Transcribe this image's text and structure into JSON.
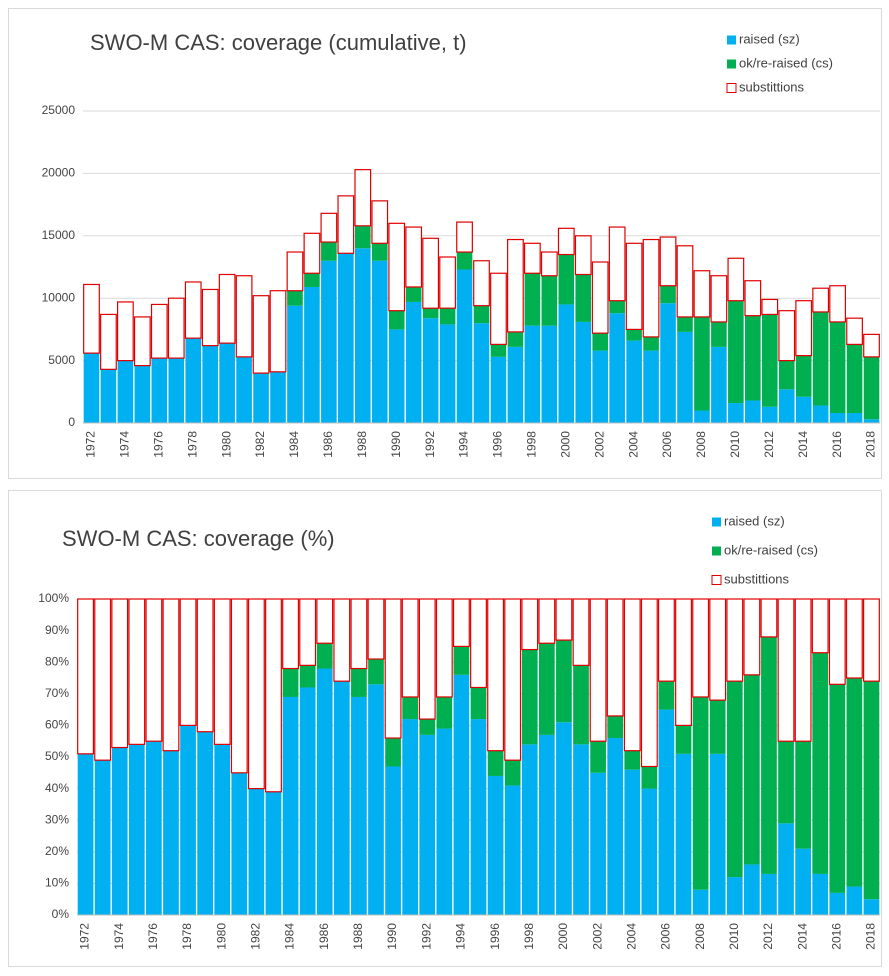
{
  "chart_data": [
    {
      "type": "bar",
      "stacked": true,
      "title": "SWO-M CAS: coverage (cumulative, t)",
      "categories": [
        "1972",
        null,
        "1974",
        null,
        "1976",
        null,
        "1978",
        null,
        "1980",
        null,
        "1982",
        null,
        "1984",
        null,
        "1986",
        null,
        "1988",
        null,
        "1990",
        null,
        "1992",
        null,
        "1994",
        null,
        "1996",
        null,
        "1998",
        null,
        "2000",
        null,
        "2002",
        null,
        "2004",
        null,
        "2006",
        null,
        "2008",
        null,
        "2010",
        null,
        "2012",
        null,
        "2014",
        null,
        "2016",
        null,
        "2018"
      ],
      "series": [
        {
          "name": "raised (sz)",
          "color": "#00b0f0",
          "values": [
            5600,
            4300,
            5000,
            4600,
            5200,
            5200,
            6800,
            6200,
            6400,
            5300,
            4000,
            4100,
            9400,
            10900,
            13000,
            13600,
            14000,
            13000,
            7500,
            9700,
            8400,
            7900,
            12300,
            8000,
            5300,
            6100,
            7800,
            7800,
            9500,
            8100,
            5800,
            8800,
            6600,
            5800,
            9600,
            7300,
            1000,
            6100,
            1600,
            1800,
            1300,
            2700,
            2100,
            1400,
            800,
            800,
            300
          ]
        },
        {
          "name": "ok/re-raised (cs)",
          "color": "#00b050",
          "values": [
            0,
            0,
            0,
            0,
            0,
            0,
            0,
            0,
            0,
            0,
            0,
            0,
            1200,
            1100,
            1500,
            0,
            1800,
            1400,
            1500,
            1200,
            800,
            1300,
            1400,
            1400,
            1000,
            1200,
            4200,
            4000,
            4000,
            3800,
            1400,
            1000,
            900,
            1100,
            1400,
            1200,
            7500,
            2000,
            8200,
            6800,
            7400,
            2300,
            3300,
            7500,
            7300,
            5500,
            5000
          ]
        },
        {
          "name": "substittions",
          "color": "#ffffff",
          "edgecolor": "#e00000",
          "values": [
            5500,
            4400,
            4700,
            3900,
            4300,
            4800,
            4500,
            4500,
            5500,
            6500,
            6200,
            6500,
            3100,
            3200,
            2300,
            4600,
            4500,
            3400,
            7000,
            4800,
            5600,
            4100,
            2400,
            3600,
            5700,
            7400,
            2400,
            1900,
            2100,
            3100,
            5700,
            5900,
            6900,
            7800,
            3900,
            5700,
            3700,
            3700,
            3400,
            2800,
            1200,
            4000,
            4400,
            1900,
            2900,
            2100,
            1800
          ]
        }
      ],
      "ylim": [
        0,
        25000
      ],
      "yticks": [
        0,
        5000,
        10000,
        15000,
        20000,
        25000
      ],
      "grid": true
    },
    {
      "type": "bar",
      "stacked": true,
      "title": "SWO-M CAS: coverage (%)",
      "categories": [
        "1972",
        null,
        "1974",
        null,
        "1976",
        null,
        "1978",
        null,
        "1980",
        null,
        "1982",
        null,
        "1984",
        null,
        "1986",
        null,
        "1988",
        null,
        "1990",
        null,
        "1992",
        null,
        "1994",
        null,
        "1996",
        null,
        "1998",
        null,
        "2000",
        null,
        "2002",
        null,
        "2004",
        null,
        "2006",
        null,
        "2008",
        null,
        "2010",
        null,
        "2012",
        null,
        "2014",
        null,
        "2016",
        null,
        "2018"
      ],
      "series": [
        {
          "name": "raised (sz)",
          "color": "#00b0f0",
          "values": [
            51,
            49,
            53,
            54,
            55,
            52,
            60,
            58,
            54,
            45,
            40,
            39,
            69,
            72,
            78,
            74,
            69,
            73,
            47,
            62,
            57,
            59,
            76,
            62,
            44,
            41,
            54,
            57,
            61,
            54,
            45,
            56,
            46,
            40,
            65,
            51,
            8,
            51,
            12,
            16,
            13,
            29,
            21,
            13,
            7,
            9,
            5
          ]
        },
        {
          "name": "ok/re-raised (cs)",
          "color": "#00b050",
          "values": [
            0,
            0,
            0,
            0,
            0,
            0,
            0,
            0,
            0,
            0,
            0,
            0,
            9,
            7,
            8,
            0,
            9,
            8,
            9,
            7,
            5,
            10,
            9,
            10,
            8,
            8,
            30,
            29,
            26,
            25,
            10,
            7,
            6,
            7,
            9,
            9,
            61,
            17,
            62,
            60,
            75,
            26,
            34,
            70,
            66,
            66,
            69
          ]
        },
        {
          "name": "substittions",
          "color": "#ffffff",
          "edgecolor": "#e00000",
          "values": [
            49,
            51,
            47,
            46,
            45,
            48,
            40,
            42,
            46,
            55,
            60,
            61,
            22,
            21,
            14,
            26,
            22,
            19,
            44,
            31,
            38,
            31,
            15,
            28,
            48,
            51,
            16,
            14,
            13,
            21,
            45,
            37,
            48,
            53,
            26,
            40,
            31,
            32,
            26,
            24,
            12,
            45,
            45,
            17,
            27,
            25,
            26
          ]
        }
      ],
      "ylim": [
        0,
        100
      ],
      "yticks": [
        {
          "value": 0,
          "label": "0%"
        },
        {
          "value": 10,
          "label": "10%"
        },
        {
          "value": 20,
          "label": "20%"
        },
        {
          "value": 30,
          "label": "30%"
        },
        {
          "value": 40,
          "label": "40%"
        },
        {
          "value": 50,
          "label": "50%"
        },
        {
          "value": 60,
          "label": "60%"
        },
        {
          "value": 70,
          "label": "70%"
        },
        {
          "value": 80,
          "label": "80%"
        },
        {
          "value": 90,
          "label": "90%"
        },
        {
          "value": 100,
          "label": "100%"
        }
      ],
      "grid": true
    }
  ]
}
